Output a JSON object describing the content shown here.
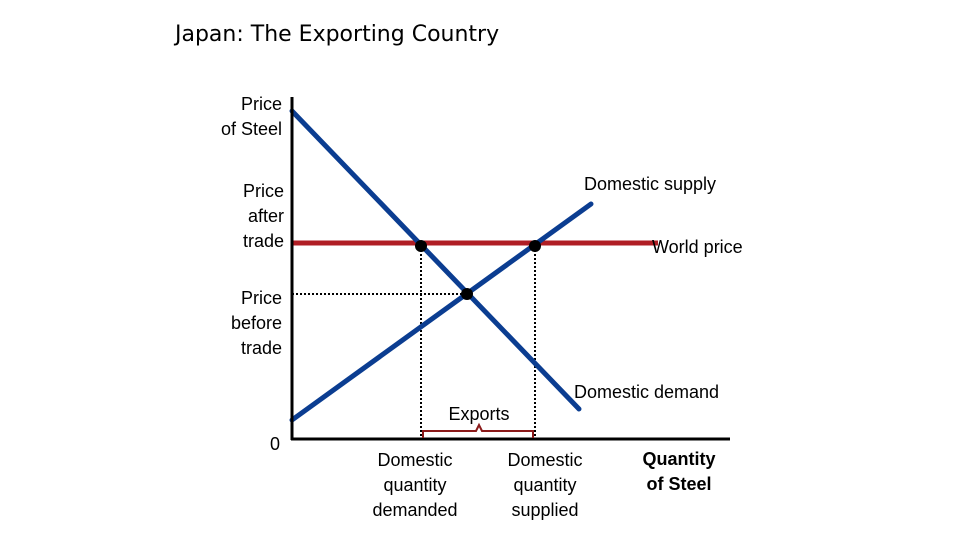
{
  "title": "Japan: The Exporting Country",
  "chart_data": {
    "type": "line",
    "title": "Japan: The Exporting Country",
    "ylabel": "Price\nof Steel",
    "xlabel": "Quantity\nof Steel",
    "origin_label": "0",
    "price_labels": {
      "after_trade": "Price\nafter\ntrade",
      "before_trade": "Price\nbefore\ntrade"
    },
    "quantity_labels": {
      "demanded": "Domestic\nquantity\ndemanded",
      "supplied": "Domestic\nquantity\nsupplied"
    },
    "series": [
      {
        "name": "Domestic supply",
        "color": "#0b3d91",
        "shape": "upward-sloping line"
      },
      {
        "name": "Domestic demand",
        "color": "#0b3d91",
        "shape": "downward-sloping line"
      },
      {
        "name": "World price",
        "color": "#b01e24",
        "shape": "horizontal line at price after trade"
      }
    ],
    "annotations": {
      "exports": "Exports",
      "exports_bracket_color": "#8b1a1a"
    },
    "points": [
      "demand at world price",
      "supply at world price",
      "domestic equilibrium"
    ],
    "guides": "dotted lines from points to axes",
    "axis_ticks": "none"
  }
}
